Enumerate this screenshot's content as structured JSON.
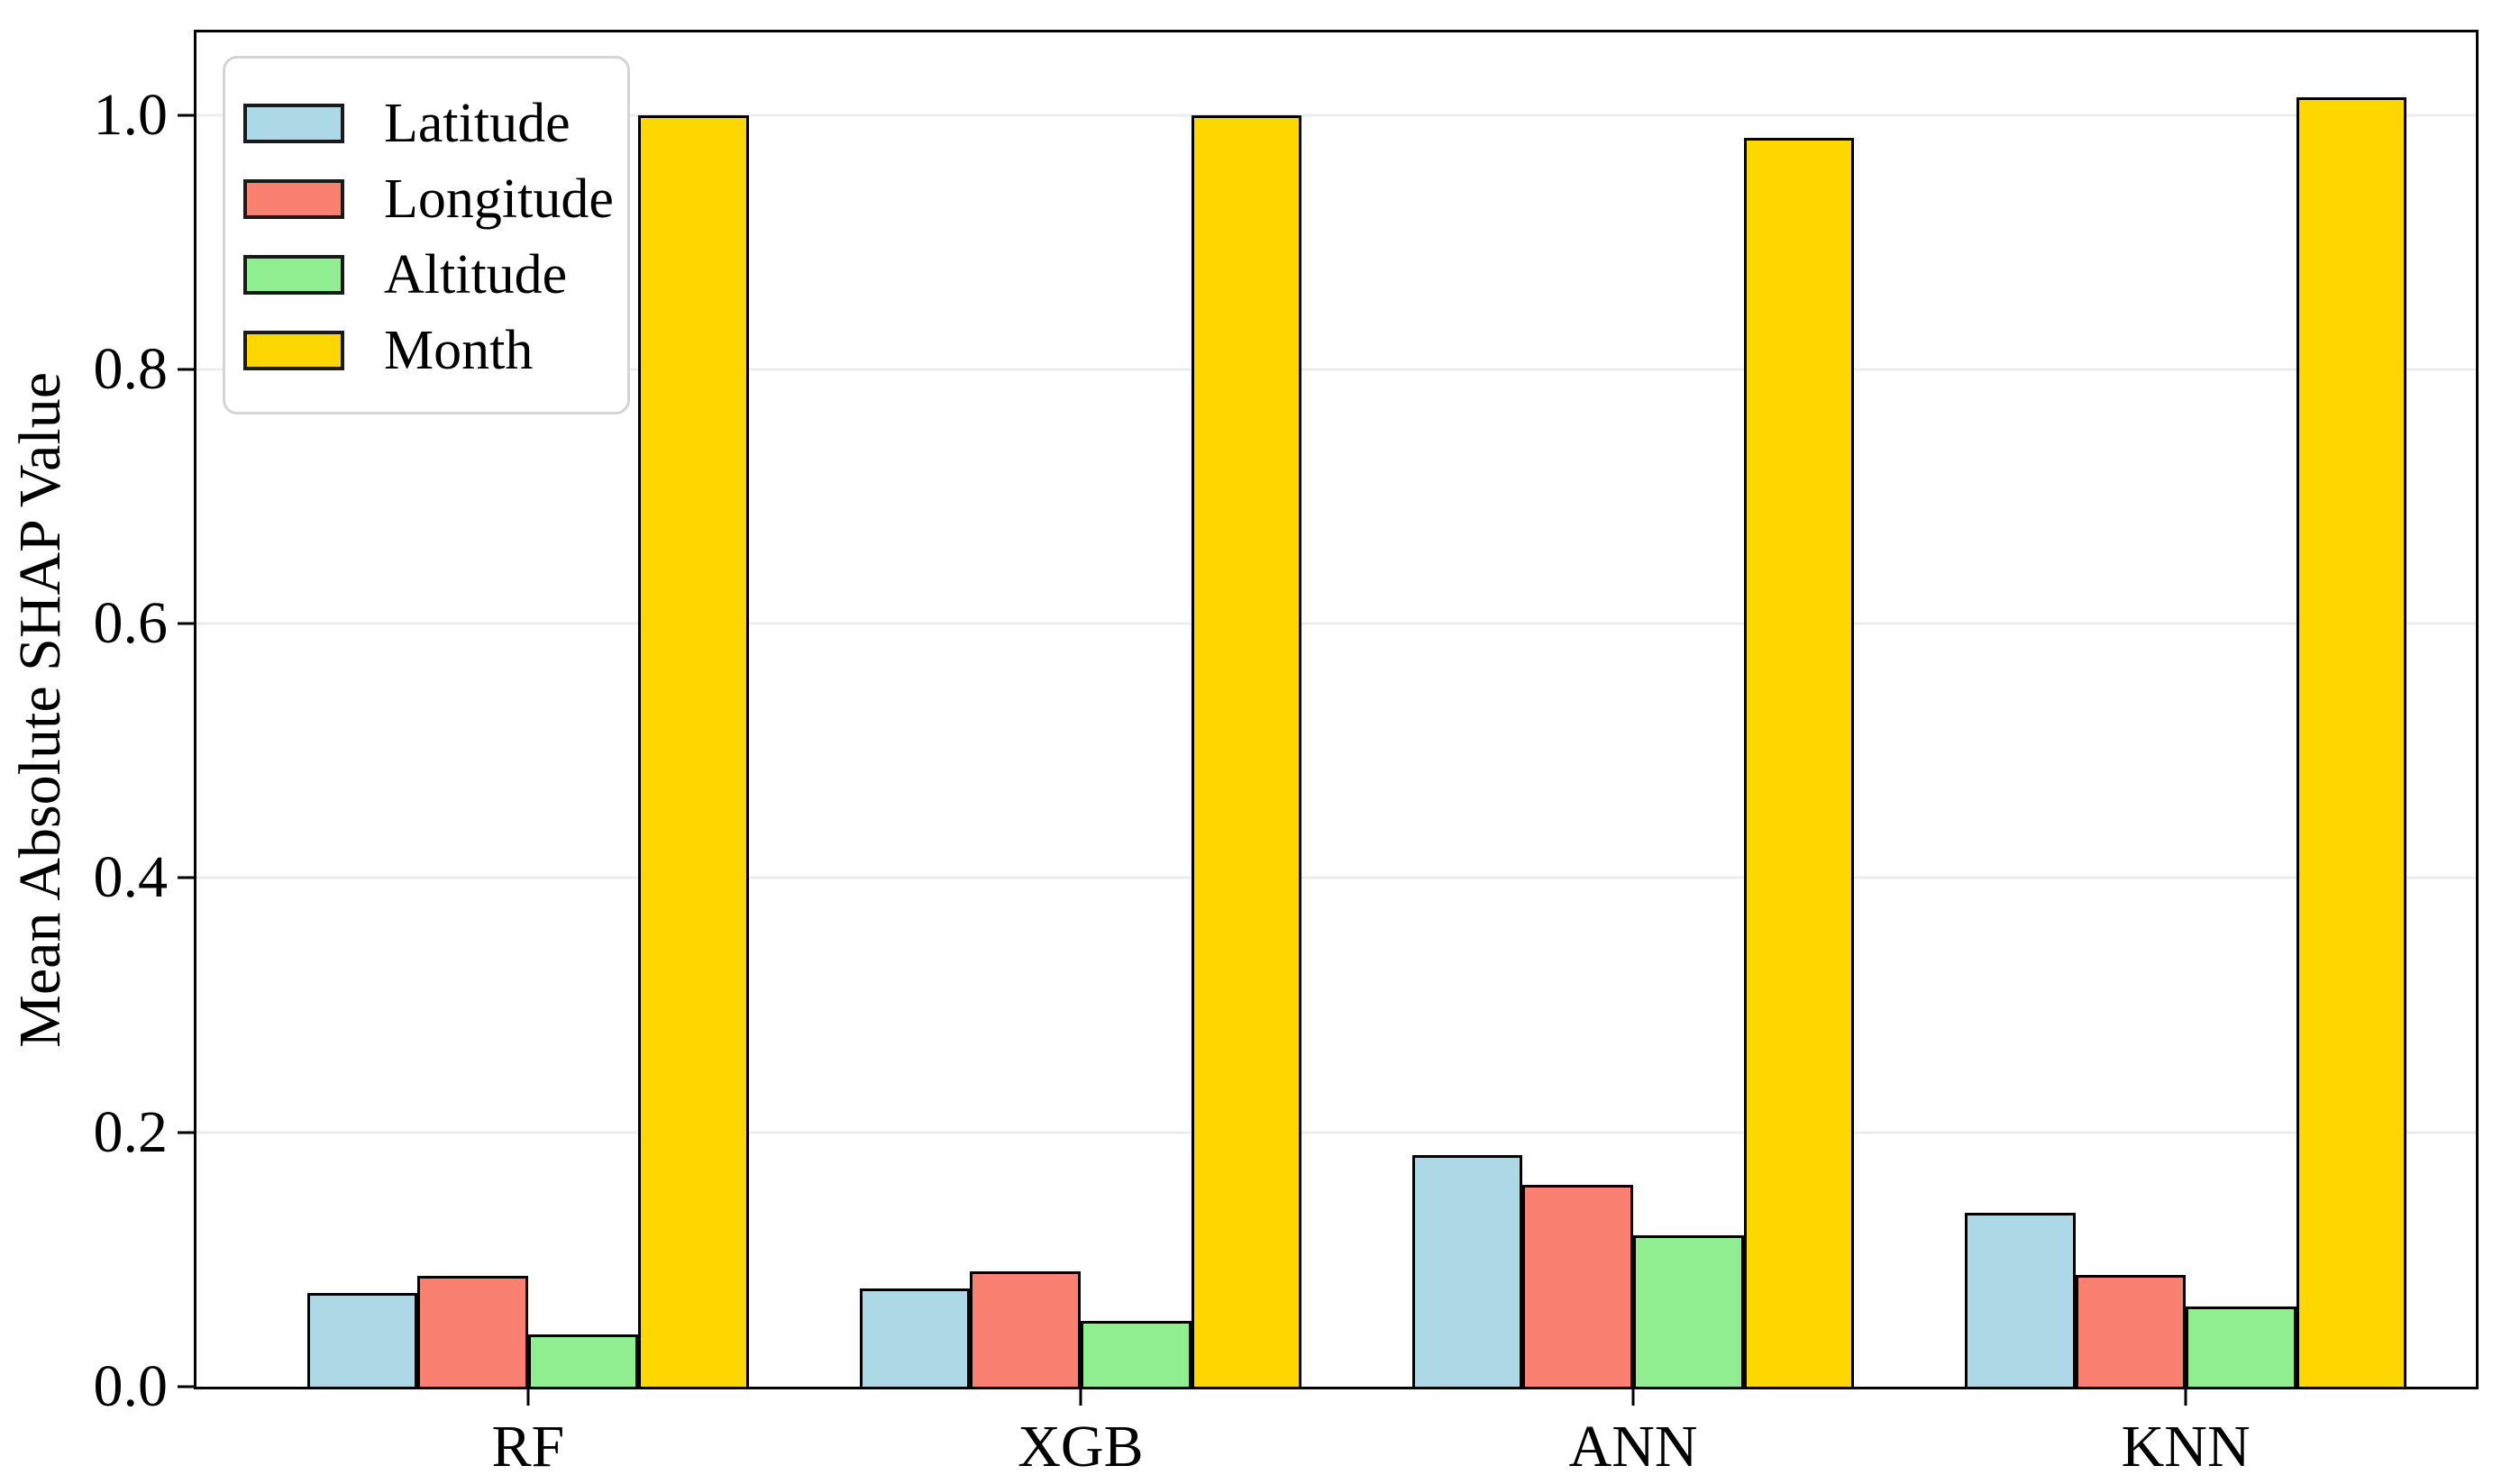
{
  "chart_data": {
    "type": "bar",
    "title": "",
    "xlabel": "",
    "ylabel": "Mean Absolute SHAP Value",
    "categories": [
      "RF",
      "XGB",
      "ANN",
      "KNN"
    ],
    "series": [
      {
        "name": "Latitude",
        "color": "#ADD8E6",
        "values": [
          0.074,
          0.077,
          0.182,
          0.137
        ]
      },
      {
        "name": "Longitude",
        "color": "#FA8072",
        "values": [
          0.087,
          0.091,
          0.159,
          0.088
        ]
      },
      {
        "name": "Altitude",
        "color": "#90EE90",
        "values": [
          0.041,
          0.052,
          0.119,
          0.063
        ]
      },
      {
        "name": "Month",
        "color": "#FFD700",
        "values": [
          1.0,
          1.0,
          0.982,
          1.014
        ]
      }
    ],
    "yticks": [
      0.0,
      0.2,
      0.4,
      0.6,
      0.8,
      1.0
    ],
    "ylim": [
      0,
      1.065
    ],
    "xlim": [
      -0.6,
      3.525
    ],
    "bar_width": 0.2,
    "grid": true,
    "grid_color": "#ececec",
    "axis_color": "#000000",
    "bar_edge_color": "#000000",
    "legend_position": "upper left"
  }
}
